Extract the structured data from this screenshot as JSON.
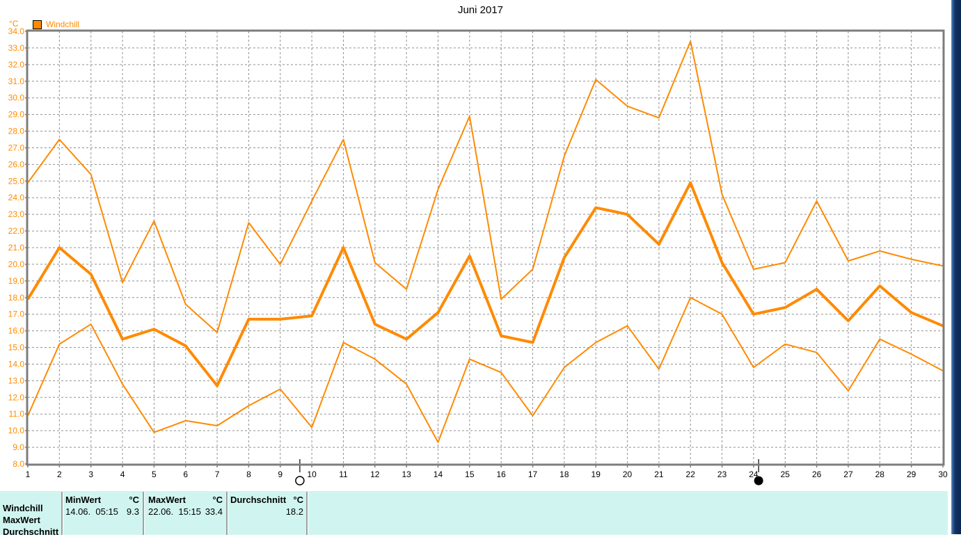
{
  "title": "Juni 2017",
  "legend": {
    "label": "Windchill",
    "color": "#ff8a00"
  },
  "chart_data": {
    "type": "line",
    "title": "Juni 2017",
    "ylabel": "°C",
    "xlabel": "",
    "x_min": 1,
    "x_max": 30,
    "y_min": 8.0,
    "y_max": 34.0,
    "y_step": 1.0,
    "grid": "dashed",
    "legend_position": "top-left",
    "x": [
      1,
      2,
      3,
      4,
      5,
      6,
      7,
      8,
      9,
      10,
      11,
      12,
      13,
      14,
      15,
      16,
      17,
      18,
      19,
      20,
      21,
      22,
      23,
      24,
      25,
      26,
      27,
      28,
      29,
      30
    ],
    "series": [
      {
        "name": "max",
        "color": "#ff8a00",
        "width": 2,
        "values": [
          24.9,
          27.5,
          25.4,
          18.9,
          22.6,
          17.6,
          15.9,
          22.5,
          20.0,
          23.8,
          27.5,
          20.1,
          18.5,
          24.5,
          28.9,
          17.9,
          19.7,
          26.5,
          31.1,
          29.5,
          28.8,
          33.4,
          24.2,
          19.7,
          20.1,
          23.8,
          20.2,
          20.8,
          20.3,
          19.9
        ]
      },
      {
        "name": "avg",
        "color": "#ff8a00",
        "width": 4,
        "values": [
          17.9,
          21.0,
          19.4,
          15.5,
          16.1,
          15.1,
          12.7,
          16.7,
          16.7,
          16.9,
          21.0,
          16.4,
          15.5,
          17.1,
          20.5,
          15.7,
          15.3,
          20.4,
          23.4,
          23.0,
          21.2,
          24.9,
          20.1,
          17.0,
          17.4,
          18.5,
          16.6,
          18.7,
          17.1,
          16.3
        ]
      },
      {
        "name": "min",
        "color": "#ff8a00",
        "width": 2,
        "values": [
          10.9,
          15.2,
          16.4,
          12.8,
          9.9,
          10.6,
          10.3,
          11.5,
          12.5,
          10.2,
          15.3,
          14.3,
          12.8,
          9.3,
          14.3,
          13.5,
          10.9,
          13.8,
          15.3,
          16.3,
          13.7,
          18.0,
          17.0,
          13.8,
          15.2,
          14.7,
          12.4,
          15.5,
          14.6,
          13.6
        ]
      }
    ],
    "annotations": [
      {
        "name": "full-moon-marker",
        "x": 9.62,
        "symbol": "open-circle"
      },
      {
        "name": "new-moon-marker",
        "x": 24.16,
        "symbol": "filled-circle"
      }
    ],
    "axis_label_color": "#ff8a00",
    "x_label_color": "#000000",
    "grid_color": "#909090",
    "border_color": "#7d7d7d"
  },
  "table": {
    "row_labels": [
      "Windchill",
      "MaxWert",
      "Durchschnitt"
    ],
    "columns": [
      {
        "header": "MinWert",
        "unit": "°C",
        "datetime": "14.06.  05:15",
        "value": "9.3"
      },
      {
        "header": "MaxWert",
        "unit": "°C",
        "datetime": "22.06.  15:15",
        "value": "33.4"
      },
      {
        "header": "Durchschnitt",
        "unit": "°C",
        "datetime": "",
        "value": "18.2"
      }
    ]
  }
}
